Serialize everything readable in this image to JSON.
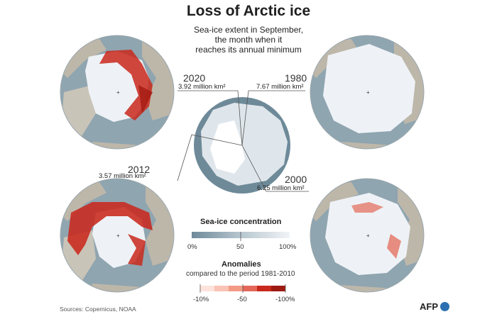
{
  "header": {
    "title": "Loss of Arctic ice",
    "subtitle_lines": [
      "Sea-ice extent in September,",
      "the month when it",
      "reaches its annual minimum"
    ]
  },
  "maps": [
    {
      "year": "2020",
      "extent": "3.92 million km²"
    },
    {
      "year": "1980",
      "extent": "7.67 million km²"
    },
    {
      "year": "2012",
      "extent": "3.57 million km²"
    },
    {
      "year": "2000",
      "extent": "6.25 million km²"
    }
  ],
  "concentration_legend": {
    "title": "Sea-ice concentration",
    "ticks": [
      "0%",
      "50",
      "100%"
    ]
  },
  "anomalies_legend": {
    "title": "Anomalies",
    "subtitle": "compared to the period 1981-2010",
    "ticks": [
      "-10%",
      "-50",
      "-100%"
    ]
  },
  "footer": {
    "sources": "Sources: Copernicus, NOAA",
    "logo": "AFP"
  },
  "colors": {
    "ocean": "#7f97a3",
    "ice": "#eef2f6",
    "land": "#b9b3a6",
    "anomaly": "#c9281c"
  }
}
